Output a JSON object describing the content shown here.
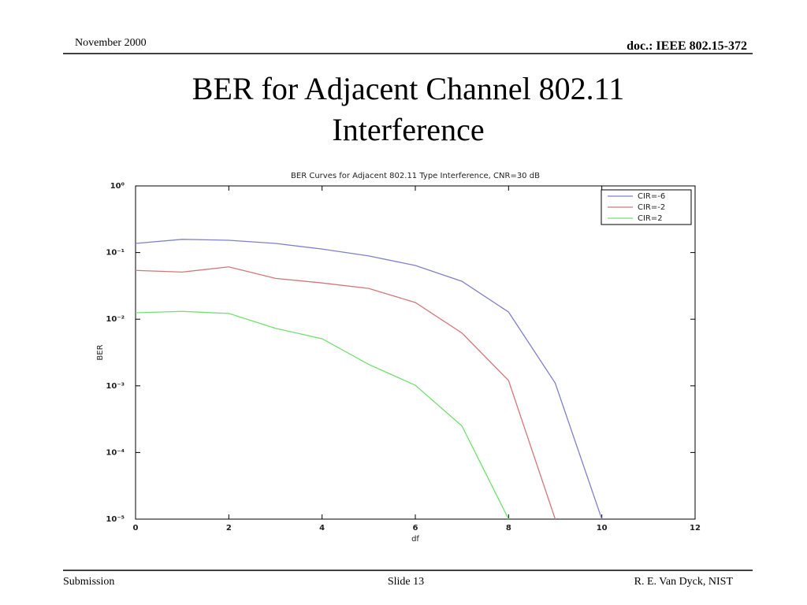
{
  "header": {
    "date": "November 2000",
    "doc": "doc.: IEEE 802.15-372"
  },
  "title_lines": [
    "BER for Adjacent Channel 802.11",
    "Interference"
  ],
  "chart_data": {
    "type": "line",
    "title": "BER Curves for Adjacent 802.11 Type Interference, CNR=30 dB",
    "x_label": "df",
    "y_label": "BER",
    "x": [
      0,
      1,
      2,
      3,
      4,
      5,
      6,
      7,
      8,
      9,
      10
    ],
    "series": [
      {
        "name": "CIR=-6",
        "color": "#8080c8",
        "values": [
          0.137,
          0.158,
          0.153,
          0.137,
          0.113,
          0.089,
          0.064,
          0.037,
          0.0128,
          0.0011,
          1e-05
        ]
      },
      {
        "name": "CIR=-2",
        "color": "#d07878",
        "values": [
          0.054,
          0.051,
          0.061,
          0.041,
          0.035,
          0.029,
          0.0178,
          0.0062,
          0.0012,
          1e-05,
          null
        ]
      },
      {
        "name": "CIR=2",
        "color": "#70e070",
        "values": [
          0.0125,
          0.0131,
          0.0122,
          0.0073,
          0.0051,
          0.0021,
          0.00102,
          0.00025,
          1e-05,
          null,
          null
        ]
      }
    ],
    "xlim": [
      0,
      12
    ],
    "xticks": [
      0,
      2,
      4,
      6,
      8,
      10,
      12
    ],
    "ylim": [
      1e-05,
      1
    ],
    "log_y": true,
    "yticks": [
      {
        "value": 1,
        "label": "10⁰"
      },
      {
        "value": 0.1,
        "label": "10⁻¹"
      },
      {
        "value": 0.01,
        "label": "10⁻²"
      },
      {
        "value": 0.001,
        "label": "10⁻³"
      },
      {
        "value": 0.0001,
        "label": "10⁻⁴"
      },
      {
        "value": 1e-05,
        "label": "10⁻⁵"
      }
    ],
    "grid": false,
    "legend": "upper-right"
  },
  "footer": {
    "left": "Submission",
    "center": "Slide 13",
    "right": "R. E. Van Dyck, NIST"
  }
}
